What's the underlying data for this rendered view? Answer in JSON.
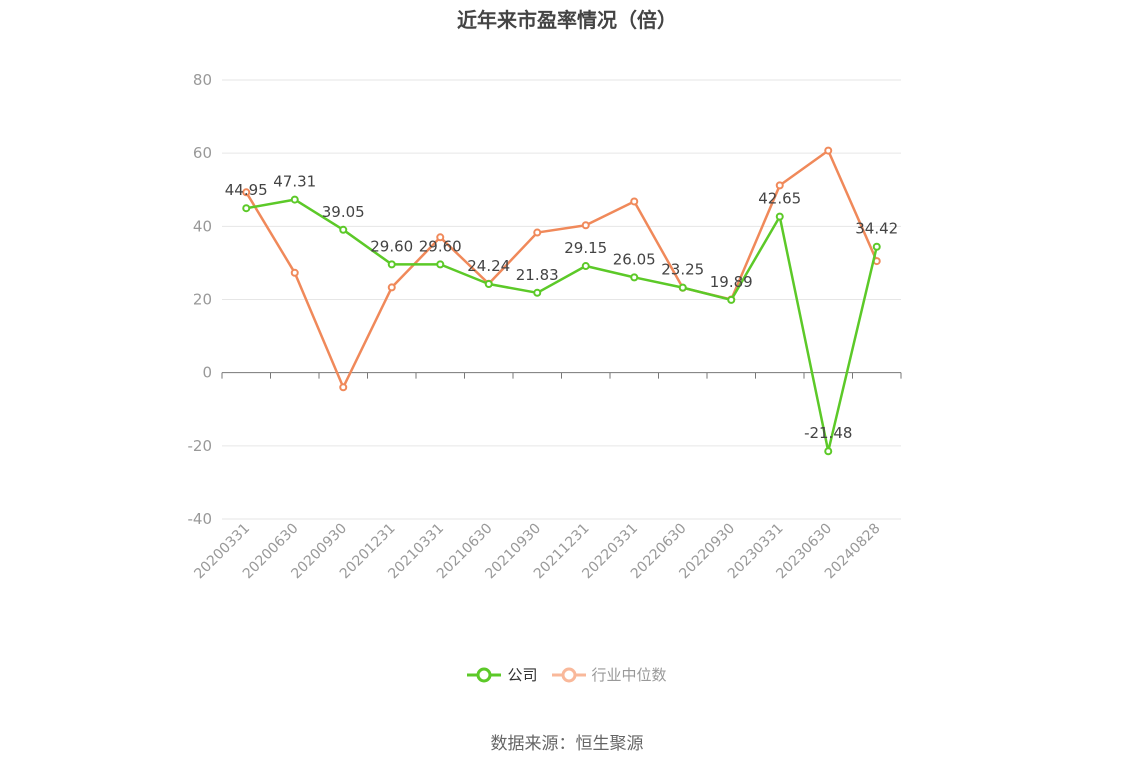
{
  "chart_data": {
    "type": "line",
    "title": "近年来市盈率情况（倍）",
    "categories": [
      "20200331",
      "20200630",
      "20200930",
      "20201231",
      "20210331",
      "20210630",
      "20210930",
      "20211231",
      "20220331",
      "20220630",
      "20220930",
      "20230331",
      "20230630",
      "20240828"
    ],
    "ylim": [
      -40,
      80
    ],
    "yticks": [
      80,
      60,
      40,
      20,
      0,
      -20,
      -40
    ],
    "grid": true,
    "legend_position": "bottom",
    "series": [
      {
        "name": "公司",
        "color": "#5cc928",
        "values": [
          44.95,
          47.31,
          39.05,
          29.6,
          29.6,
          24.24,
          21.83,
          29.15,
          26.05,
          23.25,
          19.89,
          42.65,
          -21.48,
          34.42
        ],
        "labels": [
          "44.95",
          "47.31",
          "39.05",
          "29.60",
          "29.60",
          "24.24",
          "21.83",
          "29.15",
          "26.05",
          "23.25",
          "19.89",
          "42.65",
          "-21.48",
          "34.42"
        ]
      },
      {
        "name": "行业中位数",
        "color": "#f0895a",
        "values": [
          49.3,
          27.3,
          -4.0,
          23.3,
          37.0,
          24.3,
          38.3,
          40.3,
          46.8,
          23.2,
          20.0,
          51.2,
          60.7,
          30.5
        ]
      }
    ]
  },
  "legend": {
    "company_label": "公司",
    "industry_label": "行业中位数",
    "company_color": "#5cc928",
    "industry_color": "#f9b89a",
    "industry_text_color": "#999999",
    "company_text_color": "#333333"
  },
  "source_text": "数据来源：恒生聚源"
}
